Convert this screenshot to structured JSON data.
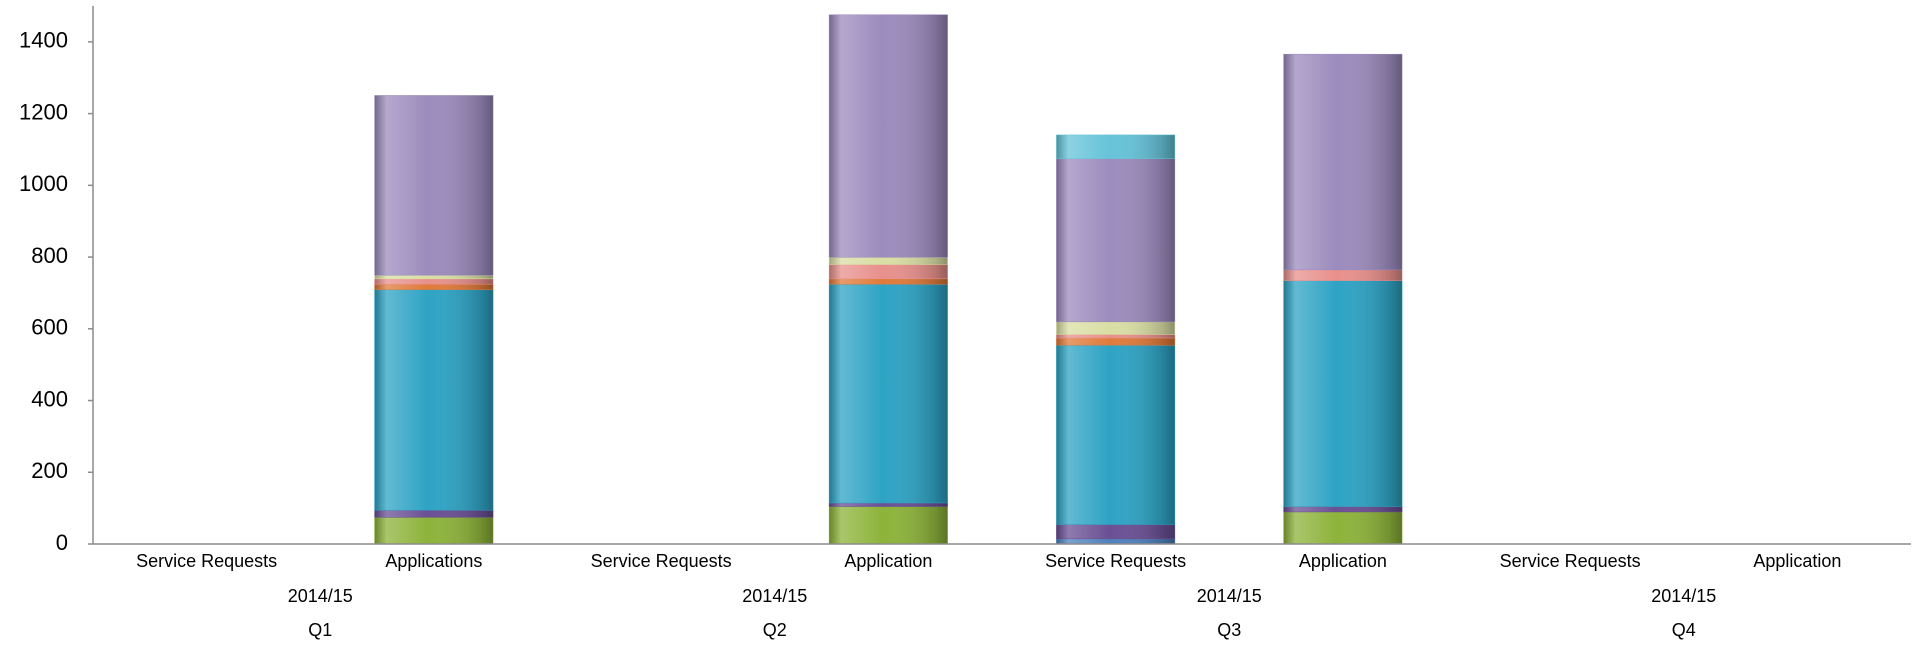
{
  "chart_data": {
    "type": "stacked_bar",
    "categories": [
      "Service Requests",
      "Applications",
      "Service Requests",
      "Application",
      "Service Requests",
      "Application",
      "Service Requests",
      "Application"
    ],
    "years": [
      "2014/15",
      "2014/15",
      "2014/15",
      "2014/15"
    ],
    "quarters": [
      "Q1",
      "Q2",
      "Q3",
      "Q4"
    ],
    "ylim": [
      0,
      1500
    ],
    "yticks": [
      0,
      200,
      400,
      600,
      800,
      1000,
      1200,
      1400
    ],
    "series": [
      {
        "color": "#4f81bd",
        "values": [
          0,
          0,
          0,
          0,
          15,
          0,
          0,
          0
        ]
      },
      {
        "color": "#8db33a",
        "values": [
          0,
          75,
          0,
          105,
          0,
          90,
          0,
          0
        ]
      },
      {
        "color": "#6a4f94",
        "values": [
          0,
          20,
          0,
          10,
          40,
          15,
          0,
          0
        ]
      },
      {
        "color": "#2ea3c4",
        "values": [
          0,
          615,
          0,
          610,
          500,
          630,
          0,
          0
        ]
      },
      {
        "color": "#e07a3a",
        "values": [
          0,
          15,
          0,
          15,
          20,
          0,
          0,
          0
        ]
      },
      {
        "color": "#e8908c",
        "values": [
          0,
          15,
          0,
          40,
          10,
          30,
          0,
          0
        ]
      },
      {
        "color": "#d9dea4",
        "values": [
          0,
          10,
          0,
          20,
          35,
          0,
          0,
          0
        ]
      },
      {
        "color": "#9c8bbd",
        "values": [
          0,
          500,
          0,
          675,
          455,
          600,
          0,
          0
        ]
      },
      {
        "color": "#66c3d9",
        "values": [
          0,
          0,
          0,
          0,
          65,
          0,
          0,
          0
        ]
      }
    ]
  }
}
